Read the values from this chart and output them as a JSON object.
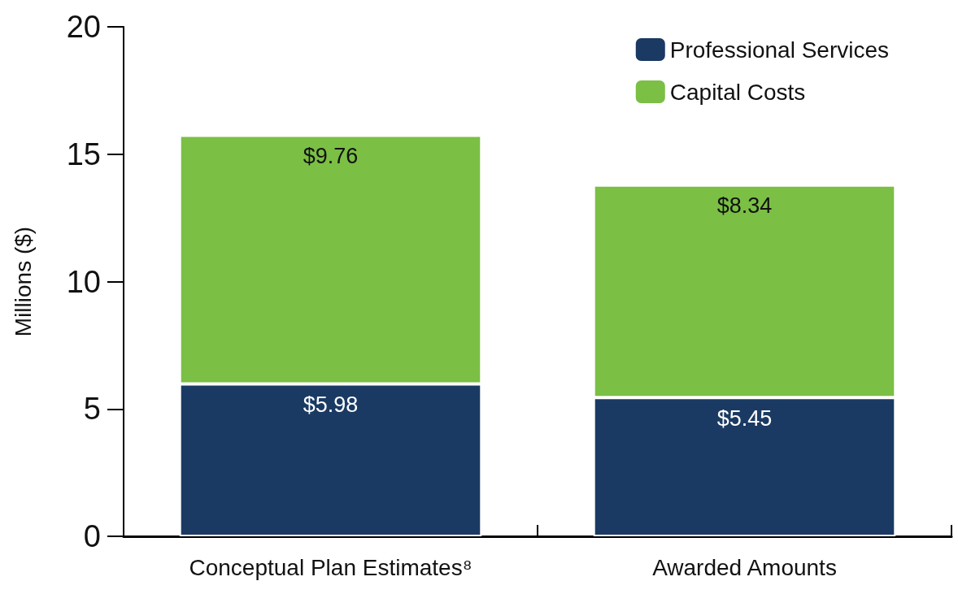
{
  "chart_data": {
    "type": "bar",
    "stacked": true,
    "ylabel": "Millions ($)",
    "categories": [
      "Conceptual Plan Estimates⁸",
      "Awarded Amounts"
    ],
    "series": [
      {
        "name": "Professional Services",
        "color": "#1a3a63",
        "values": [
          5.98,
          5.45
        ],
        "value_labels": [
          "$5.98",
          "$5.45"
        ]
      },
      {
        "name": "Capital Costs",
        "color": "#7bbf45",
        "values": [
          9.76,
          8.34
        ],
        "value_labels": [
          "$9.76",
          "$8.34"
        ]
      }
    ],
    "ylim": [
      0,
      20
    ],
    "yticks": [
      0,
      5,
      10,
      15,
      20
    ],
    "grid": false,
    "legend": "top right"
  }
}
